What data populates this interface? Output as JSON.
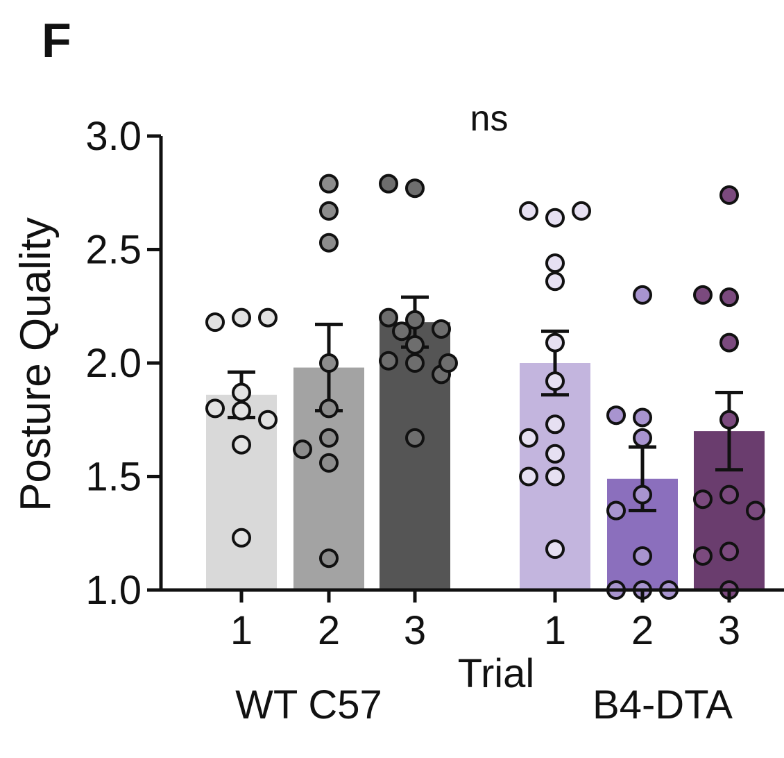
{
  "panel_label": "F",
  "chart_data": {
    "type": "bar",
    "ylabel": "Posture Quality",
    "xlabel": "Trial",
    "ylim": [
      1.0,
      3.0
    ],
    "yticks": [
      "1.0",
      "1.5",
      "2.0",
      "2.5",
      "3.0"
    ],
    "ytick_values": [
      1.0,
      1.5,
      2.0,
      2.5,
      3.0
    ],
    "categories": [
      "1",
      "2",
      "3",
      "1",
      "2",
      "3"
    ],
    "groups": [
      {
        "name": "WT  C57",
        "bars": [
          0,
          1,
          2
        ]
      },
      {
        "name": "B4-DTA",
        "bars": [
          3,
          4,
          5
        ]
      }
    ],
    "significance": "ns",
    "bars": [
      {
        "trial": "1",
        "mean": 1.86,
        "sem_low": 1.76,
        "sem_high": 1.96,
        "color": "#d9d9d9",
        "point_color": "#e2e2e2",
        "points": [
          2.2,
          2.18,
          2.2,
          1.87,
          1.8,
          1.79,
          1.75,
          1.64,
          1.23
        ]
      },
      {
        "trial": "2",
        "mean": 1.98,
        "sem_low": 1.79,
        "sem_high": 2.17,
        "color": "#a3a3a3",
        "point_color": "#8c8c8c",
        "points": [
          2.79,
          2.67,
          2.53,
          2.0,
          1.8,
          1.67,
          1.62,
          1.56,
          1.14
        ]
      },
      {
        "trial": "3",
        "mean": 2.18,
        "sem_low": 2.07,
        "sem_high": 2.29,
        "color": "#555555",
        "point_color": "#6e6e6e",
        "points": [
          2.77,
          2.79,
          2.19,
          2.2,
          2.15,
          2.14,
          2.08,
          2.0,
          2.01,
          1.95,
          2.0,
          1.67
        ]
      },
      {
        "trial": "1",
        "mean": 2.0,
        "sem_low": 1.86,
        "sem_high": 2.14,
        "color": "#c3b5de",
        "point_color": "#e6e0f2",
        "points": [
          2.64,
          2.67,
          2.67,
          2.44,
          2.36,
          2.09,
          1.92,
          1.73,
          1.67,
          1.6,
          1.5,
          1.5,
          1.18
        ]
      },
      {
        "trial": "2",
        "mean": 1.49,
        "sem_low": 1.35,
        "sem_high": 1.63,
        "color": "#8b6fbd",
        "point_color": "#a894cf",
        "points": [
          2.3,
          1.76,
          1.77,
          1.67,
          1.42,
          1.35,
          1.15,
          1.0,
          1.0,
          1.0
        ]
      },
      {
        "trial": "3",
        "mean": 1.7,
        "sem_low": 1.53,
        "sem_high": 1.87,
        "color": "#6a3d6e",
        "point_color": "#7b4a7e",
        "points": [
          2.74,
          2.29,
          2.3,
          2.09,
          1.75,
          1.42,
          1.4,
          1.35,
          1.17,
          1.15,
          1.0
        ]
      }
    ]
  }
}
